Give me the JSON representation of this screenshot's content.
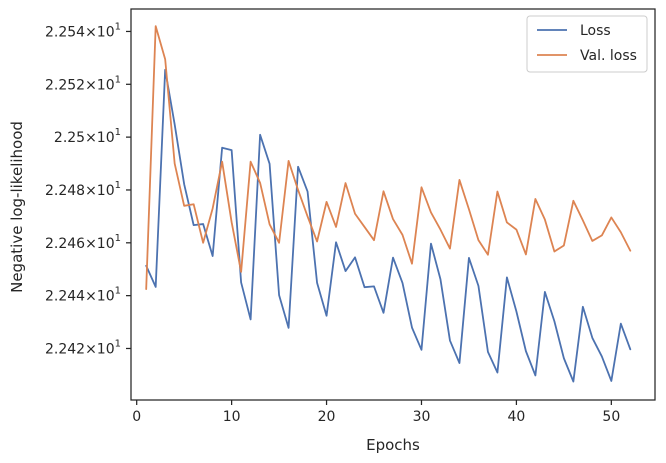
{
  "chart_data": {
    "type": "line",
    "xlabel": "Epochs",
    "ylabel": "Negative log-likelihood",
    "xlim": [
      -0.6,
      54.6
    ],
    "ylim": [
      22.4005,
      22.5485
    ],
    "xticks": [
      0,
      10,
      20,
      30,
      40,
      50
    ],
    "xtick_labels": [
      "0",
      "10",
      "20",
      "30",
      "40",
      "50"
    ],
    "yticks": [
      22.42,
      22.44,
      22.46,
      22.48,
      22.5,
      22.52,
      22.54
    ],
    "ytick_labels": [
      {
        "mantissa": "2.242",
        "exp": "1"
      },
      {
        "mantissa": "2.244",
        "exp": "1"
      },
      {
        "mantissa": "2.246",
        "exp": "1"
      },
      {
        "mantissa": "2.248",
        "exp": "1"
      },
      {
        "mantissa": "2.25",
        "exp": "1"
      },
      {
        "mantissa": "2.252",
        "exp": "1"
      },
      {
        "mantissa": "2.254",
        "exp": "1"
      }
    ],
    "ytick_times": "×10",
    "grid": false,
    "legend_position": "top-right",
    "x": [
      1,
      2,
      3,
      4,
      5,
      6,
      7,
      8,
      9,
      10,
      11,
      12,
      13,
      14,
      15,
      16,
      17,
      18,
      19,
      20,
      21,
      22,
      23,
      24,
      25,
      26,
      27,
      28,
      29,
      30,
      31,
      32,
      33,
      34,
      35,
      36,
      37,
      38,
      39,
      40,
      41,
      42,
      43,
      44,
      45,
      46,
      47,
      48,
      49,
      50,
      51,
      52
    ],
    "series": [
      {
        "name": "Loss",
        "color": "#4c72b0",
        "values": [
          22.4513,
          22.4433,
          22.5255,
          22.5048,
          22.4822,
          22.4667,
          22.4671,
          22.455,
          22.496,
          22.4951,
          22.445,
          22.431,
          22.5009,
          22.4899,
          22.4402,
          22.4278,
          22.4888,
          22.4794,
          22.4449,
          22.4324,
          22.4602,
          22.4493,
          22.4545,
          22.4432,
          22.4435,
          22.4335,
          22.4544,
          22.4448,
          22.4279,
          22.4195,
          22.4597,
          22.4462,
          22.423,
          22.4145,
          22.4543,
          22.4437,
          22.4187,
          22.4109,
          22.4469,
          22.434,
          22.419,
          22.4098,
          22.4414,
          22.4303,
          22.4163,
          22.4075,
          22.4358,
          22.424,
          22.417,
          22.4077,
          22.4294,
          22.4197
        ]
      },
      {
        "name": "Val. loss",
        "color": "#dd8452",
        "values": [
          22.4425,
          22.542,
          22.5295,
          22.49,
          22.474,
          22.4746,
          22.46,
          22.473,
          22.4907,
          22.4678,
          22.449,
          22.4907,
          22.4827,
          22.467,
          22.46,
          22.491,
          22.48,
          22.47,
          22.4605,
          22.4755,
          22.466,
          22.4826,
          22.471,
          22.466,
          22.461,
          22.4795,
          22.469,
          22.463,
          22.4521,
          22.481,
          22.4715,
          22.465,
          22.4578,
          22.4838,
          22.4727,
          22.461,
          22.4555,
          22.4794,
          22.4677,
          22.465,
          22.4556,
          22.4766,
          22.4688,
          22.4567,
          22.459,
          22.4759,
          22.4685,
          22.4607,
          22.4628,
          22.4696,
          22.464,
          22.457
        ]
      }
    ]
  }
}
